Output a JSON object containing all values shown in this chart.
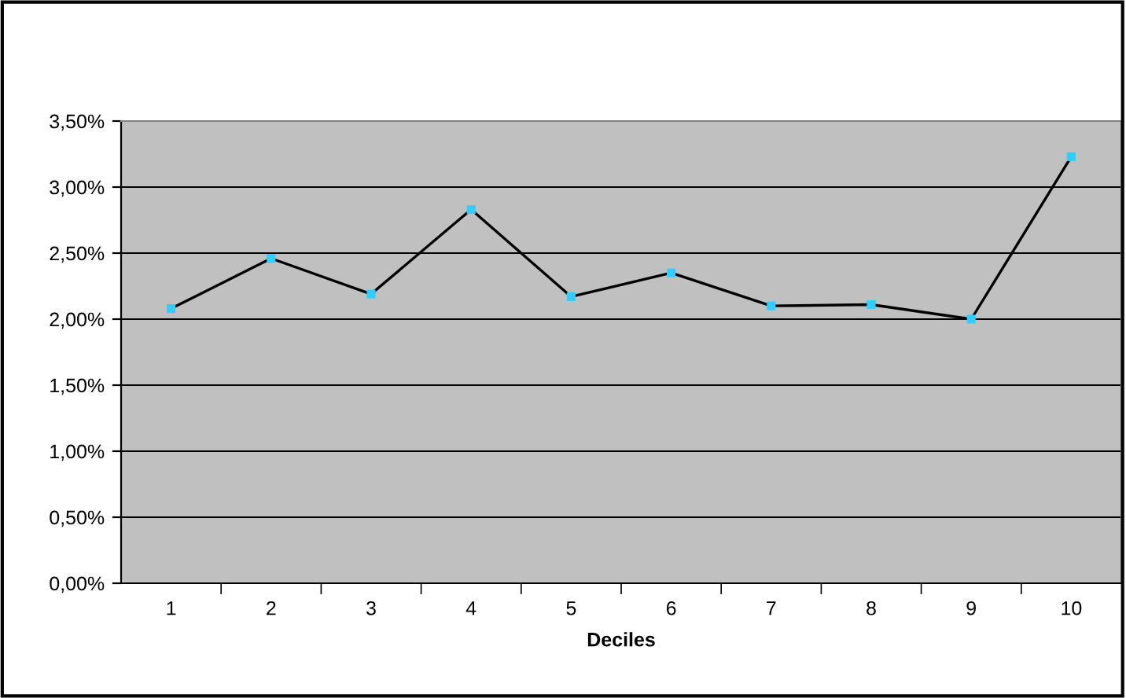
{
  "chart_data": {
    "type": "line",
    "xlabel": "Deciles",
    "categories": [
      "1",
      "2",
      "3",
      "4",
      "5",
      "6",
      "7",
      "8",
      "9",
      "10"
    ],
    "series": [
      {
        "color": "#000000",
        "values": [
          2.08,
          2.46,
          2.19,
          2.83,
          2.17,
          2.35,
          2.1,
          2.11,
          2.0,
          3.23
        ]
      },
      {
        "type": "scatter",
        "color": "#33ccff",
        "marker": "square",
        "values": [
          2.08,
          2.46,
          2.19,
          2.83,
          2.17,
          2.35,
          2.1,
          2.11,
          2.0,
          3.23
        ]
      }
    ],
    "ylim": [
      0,
      3.5
    ],
    "yticks": [
      {
        "value": 0,
        "label": "0,00%"
      },
      {
        "value": 0.5,
        "label": "0,50%"
      },
      {
        "value": 1,
        "label": "1,00%"
      },
      {
        "value": 1.5,
        "label": "1,50%"
      },
      {
        "value": 2,
        "label": "2,00%"
      },
      {
        "value": 2.5,
        "label": "2,50%"
      },
      {
        "value": 3,
        "label": "3,00%"
      },
      {
        "value": 3.5,
        "label": "3,50%"
      }
    ],
    "grid": "y",
    "line_style": "solid"
  }
}
